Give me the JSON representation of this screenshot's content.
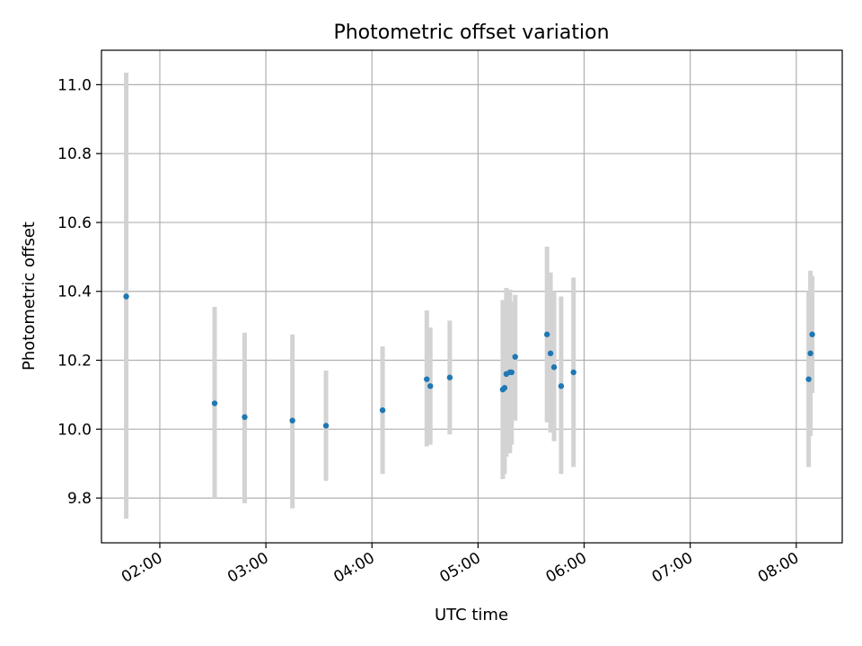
{
  "chart_data": {
    "type": "scatter",
    "title": "Photometric offset variation",
    "xlabel": "UTC time",
    "ylabel": "Photometric offset",
    "x_ticks": [
      "02:00",
      "03:00",
      "04:00",
      "05:00",
      "06:00",
      "07:00",
      "08:00"
    ],
    "y_ticks": [
      "9.8",
      "10.0",
      "10.2",
      "10.4",
      "10.6",
      "10.8",
      "11.0"
    ],
    "xlim": [
      "01:27",
      "08:26"
    ],
    "ylim": [
      9.67,
      11.1
    ],
    "grid": true,
    "colors": {
      "points": "#1f77b4",
      "errorbars": "#d3d3d3",
      "grid": "#b0b0b0"
    },
    "points": [
      {
        "x": "01:41",
        "y": 10.385,
        "ylow": 9.74,
        "yhigh": 11.035
      },
      {
        "x": "02:31",
        "y": 10.075,
        "ylow": 9.8,
        "yhigh": 10.355
      },
      {
        "x": "02:48",
        "y": 10.035,
        "ylow": 9.785,
        "yhigh": 10.28
      },
      {
        "x": "03:15",
        "y": 10.025,
        "ylow": 9.77,
        "yhigh": 10.275
      },
      {
        "x": "03:34",
        "y": 10.01,
        "ylow": 9.85,
        "yhigh": 10.17
      },
      {
        "x": "04:06",
        "y": 10.055,
        "ylow": 9.87,
        "yhigh": 10.24
      },
      {
        "x": "04:31",
        "y": 10.145,
        "ylow": 9.95,
        "yhigh": 10.345
      },
      {
        "x": "04:33",
        "y": 10.125,
        "ylow": 9.955,
        "yhigh": 10.295
      },
      {
        "x": "04:44",
        "y": 10.15,
        "ylow": 9.985,
        "yhigh": 10.315
      },
      {
        "x": "05:14",
        "y": 10.115,
        "ylow": 9.855,
        "yhigh": 10.375
      },
      {
        "x": "05:15",
        "y": 10.12,
        "ylow": 9.87,
        "yhigh": 10.37
      },
      {
        "x": "05:16",
        "y": 10.16,
        "ylow": 9.92,
        "yhigh": 10.41
      },
      {
        "x": "05:18",
        "y": 10.165,
        "ylow": 9.93,
        "yhigh": 10.405
      },
      {
        "x": "05:19",
        "y": 10.165,
        "ylow": 9.955,
        "yhigh": 10.37
      },
      {
        "x": "05:21",
        "y": 10.21,
        "ylow": 10.025,
        "yhigh": 10.39
      },
      {
        "x": "05:39",
        "y": 10.275,
        "ylow": 10.02,
        "yhigh": 10.53
      },
      {
        "x": "05:41",
        "y": 10.22,
        "ylow": 9.99,
        "yhigh": 10.455
      },
      {
        "x": "05:43",
        "y": 10.18,
        "ylow": 9.965,
        "yhigh": 10.4
      },
      {
        "x": "05:47",
        "y": 10.125,
        "ylow": 9.87,
        "yhigh": 10.385
      },
      {
        "x": "05:54",
        "y": 10.165,
        "ylow": 9.89,
        "yhigh": 10.44
      },
      {
        "x": "08:07",
        "y": 10.145,
        "ylow": 9.89,
        "yhigh": 10.4
      },
      {
        "x": "08:08",
        "y": 10.22,
        "ylow": 9.98,
        "yhigh": 10.46
      },
      {
        "x": "08:09",
        "y": 10.275,
        "ylow": 10.105,
        "yhigh": 10.445
      }
    ]
  }
}
